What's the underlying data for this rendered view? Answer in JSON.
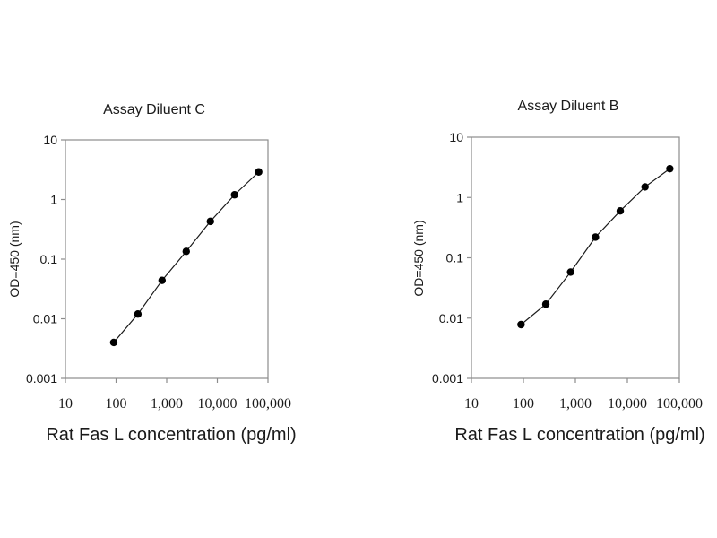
{
  "colors": {
    "background": "#ffffff",
    "axis": "#8c8c8c",
    "line": "#1a1a1a",
    "marker": "#000000",
    "text": "#1a1a1a"
  },
  "chart_data": [
    {
      "type": "line",
      "title": "Assay Diluent C",
      "xlabel": "Rat Fas L concentration (pg/ml)",
      "ylabel": "OD=450 (nm)",
      "x_scale": "log",
      "y_scale": "log",
      "xlim": [
        10,
        100000
      ],
      "ylim": [
        0.001,
        10
      ],
      "grid": false,
      "marker": "filled-circle",
      "x_ticks": [
        {
          "label": "10",
          "value": 10
        },
        {
          "label": "100",
          "value": 100
        },
        {
          "label": "1,000",
          "value": 1000
        },
        {
          "label": "10,000",
          "value": 10000
        },
        {
          "label": "100,000",
          "value": 100000
        }
      ],
      "y_ticks": [
        {
          "label": "0.001",
          "value": 0.001
        },
        {
          "label": "0.01",
          "value": 0.01
        },
        {
          "label": "0.1",
          "value": 0.1
        },
        {
          "label": "1",
          "value": 1
        },
        {
          "label": "10",
          "value": 10
        }
      ],
      "x": [
        90,
        270,
        810,
        2430,
        7290,
        21870,
        65610
      ],
      "y": [
        0.004,
        0.012,
        0.044,
        0.135,
        0.43,
        1.2,
        2.9
      ]
    },
    {
      "type": "line",
      "title": "Assay Diluent B",
      "xlabel": "Rat Fas L concentration (pg/ml)",
      "ylabel": "OD=450 (nm)",
      "x_scale": "log",
      "y_scale": "log",
      "xlim": [
        10,
        100000
      ],
      "ylim": [
        0.001,
        10
      ],
      "grid": false,
      "marker": "filled-circle",
      "x_ticks": [
        {
          "label": "10",
          "value": 10
        },
        {
          "label": "100",
          "value": 100
        },
        {
          "label": "1,000",
          "value": 1000
        },
        {
          "label": "10,000",
          "value": 10000
        },
        {
          "label": "100,000",
          "value": 100000
        }
      ],
      "y_ticks": [
        {
          "label": "0.001",
          "value": 0.001
        },
        {
          "label": "0.01",
          "value": 0.01
        },
        {
          "label": "0.1",
          "value": 0.1
        },
        {
          "label": "1",
          "value": 1
        },
        {
          "label": "10",
          "value": 10
        }
      ],
      "x": [
        90,
        270,
        810,
        2430,
        7290,
        21870,
        65610
      ],
      "y": [
        0.0078,
        0.017,
        0.058,
        0.22,
        0.6,
        1.5,
        3.0
      ]
    }
  ]
}
